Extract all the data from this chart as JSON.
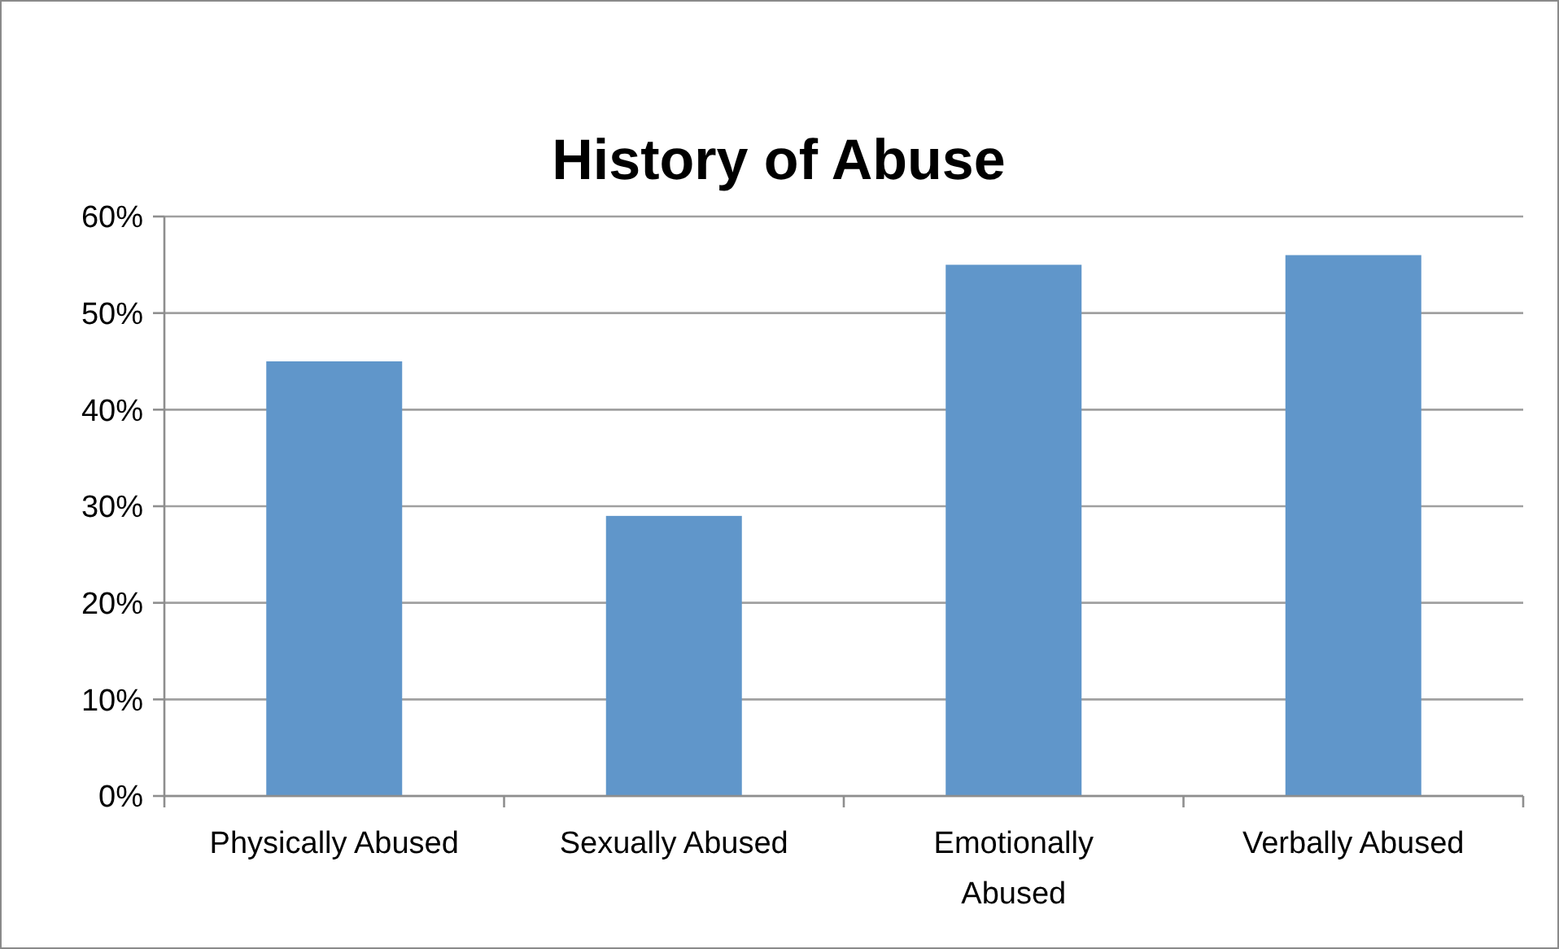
{
  "chart_data": {
    "type": "bar",
    "title": "History of Abuse",
    "categories": [
      "Physically Abused",
      "Sexually Abused",
      "Emotionally Abused",
      "Verbally Abused"
    ],
    "values": [
      45,
      29,
      55,
      56
    ],
    "color": "#6096ca",
    "ylim": [
      0,
      60
    ],
    "yticks": [
      {
        "value": 0,
        "label": "0%"
      },
      {
        "value": 10,
        "label": "10%"
      },
      {
        "value": 20,
        "label": "20%"
      },
      {
        "value": 30,
        "label": "30%"
      },
      {
        "value": 40,
        "label": "40%"
      },
      {
        "value": 50,
        "label": "50%"
      },
      {
        "value": 60,
        "label": "60%"
      }
    ],
    "grid": "y"
  }
}
